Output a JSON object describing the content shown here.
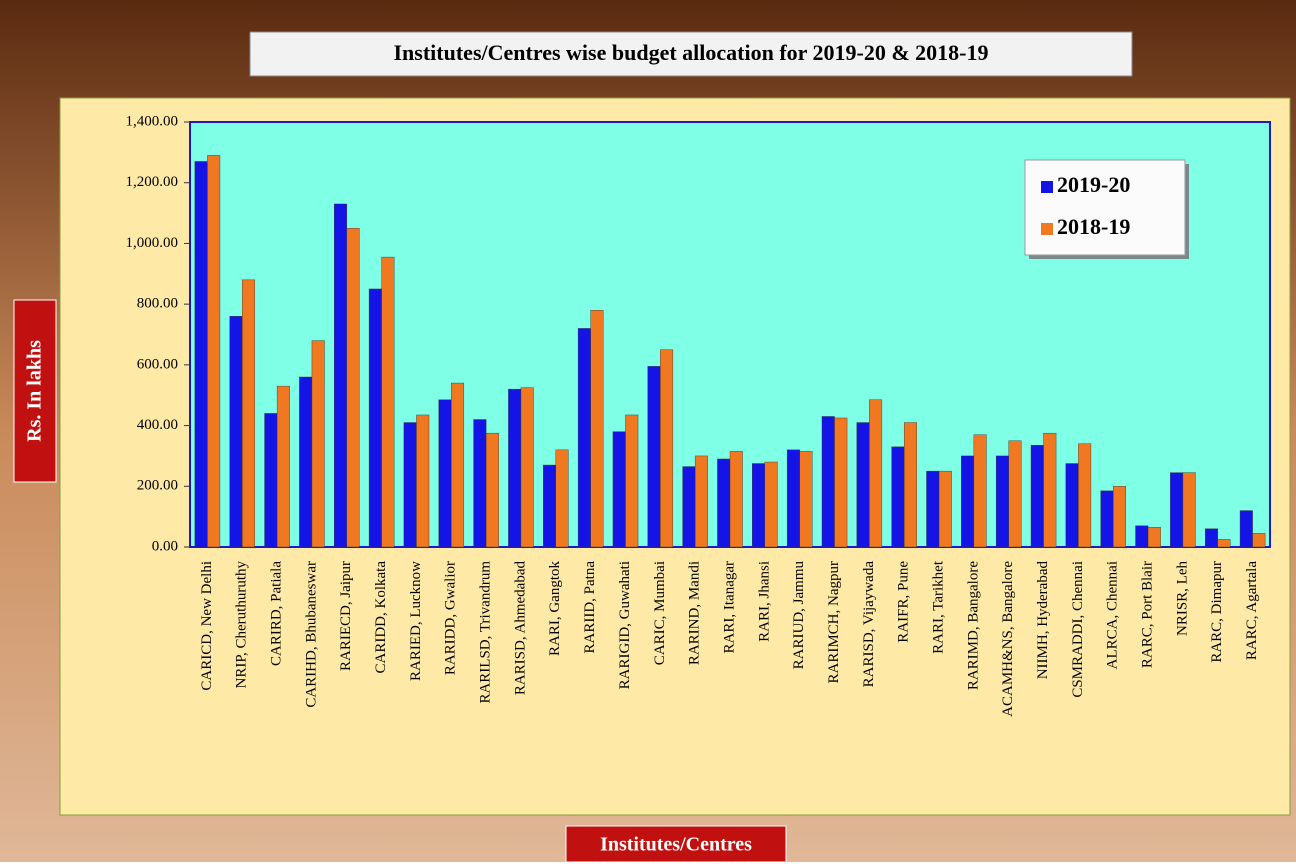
{
  "chart_data": {
    "type": "bar",
    "title": "Institutes/Centres  wise budget allocation for 2019-20 & 2018-19",
    "x_label": "Institutes/Centres",
    "y_label": "Rs. In lakhs",
    "categories": [
      "CARICD, New Delhi",
      "NRIP, Cheruthuruthy",
      "CARIRD, Patiala",
      "CARIHD, Bhubaneswar",
      "RARIECD, Jaipur",
      "CARIDD, Kolkata",
      "RARIED, Lucknow",
      "RARIDD, Gwalior",
      "RARILSD, Trivandrum",
      "RARISD, Ahmedabad",
      "RARI, Gangtok",
      "RARIID, Patna",
      "RARIGID, Guwahati",
      "CARIC, Mumbai",
      "RARIND, Mandi",
      "RARI, Itanagar",
      "RARI, Jhansi",
      "RARIUD, Jammu",
      "RARIMCH, Nagpur",
      "RARISD, Vijaywada",
      "RAIFR, Pune",
      "RARI, Tarikhet",
      "RARIMD, Bangalore",
      "ACAMH&NS, Bangalore",
      "NIIMH, Hyderabad",
      "CSMRADDI, Chennai",
      "ALRCA, Chennai",
      "RARC, Port Blair",
      "NRISR, Leh",
      "RARC, Dimapur",
      "RARC, Agartala"
    ],
    "series": [
      {
        "name": "2019-20",
        "color": "#1414e6",
        "values": [
          1270,
          760,
          440,
          560,
          1130,
          850,
          410,
          485,
          420,
          520,
          270,
          720,
          380,
          595,
          265,
          290,
          275,
          320,
          430,
          410,
          330,
          250,
          300,
          300,
          335,
          275,
          185,
          70,
          245,
          60,
          120
        ]
      },
      {
        "name": "2018-19",
        "color": "#f07820",
        "values": [
          1290,
          880,
          530,
          680,
          1050,
          955,
          435,
          540,
          375,
          525,
          320,
          780,
          435,
          650,
          300,
          315,
          280,
          315,
          425,
          485,
          410,
          250,
          370,
          350,
          375,
          340,
          200,
          65,
          245,
          25,
          45
        ]
      }
    ],
    "ylim": [
      0,
      1400
    ],
    "yticks": [
      {
        "value": 0,
        "label": "0.00"
      },
      {
        "value": 200,
        "label": "200.00"
      },
      {
        "value": 400,
        "label": "400.00"
      },
      {
        "value": 600,
        "label": "600.00"
      },
      {
        "value": 800,
        "label": "800.00"
      },
      {
        "value": 1000,
        "label": "1,000.00"
      },
      {
        "value": 1200,
        "label": "1,200.00"
      },
      {
        "value": 1400,
        "label": "1,400.00"
      }
    ],
    "legend": "upper right"
  }
}
